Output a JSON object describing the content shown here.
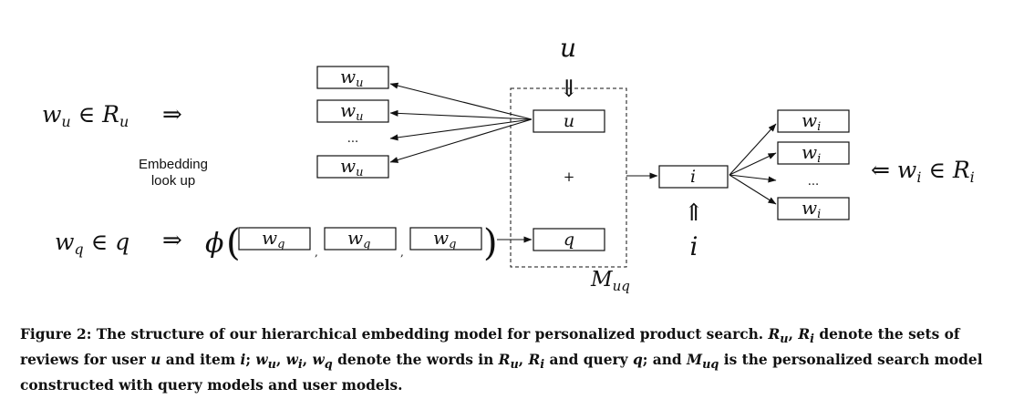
{
  "diagram": {
    "user_symbol": "u",
    "item_symbol": "i",
    "user_word_eq": "w_u ∈ R_u",
    "query_word_eq": "w_q ∈ q",
    "item_word_eq": "⇐ w_i ∈ R_i",
    "implies_right": "⇒",
    "implies_down": "⇓",
    "implies_up": "⇑",
    "phi": "ϕ",
    "embedding_label_line1": "Embedding",
    "embedding_label_line2": "look up",
    "user_word_boxes": [
      "w_u",
      "w_u",
      "w_u"
    ],
    "item_word_boxes": [
      "w_i",
      "w_i",
      "w_i"
    ],
    "query_word_boxes": [
      "w_q",
      "w_q",
      "w_q"
    ],
    "ellipsis": "...",
    "plus": "+",
    "user_model_box": "u",
    "query_model_box": "q",
    "item_model_box": "i",
    "model_label": "M_uq"
  },
  "caption": {
    "figure_label": "Figure 2:",
    "text": "The structure of our hierarchical embedding model for personalized product search. R_u, R_i denote the sets of reviews for user u and item i; w_u, w_i, w_q denote the words in R_u, R_i and query q; and M_uq is the personalized search model constructed with query models and user models."
  }
}
